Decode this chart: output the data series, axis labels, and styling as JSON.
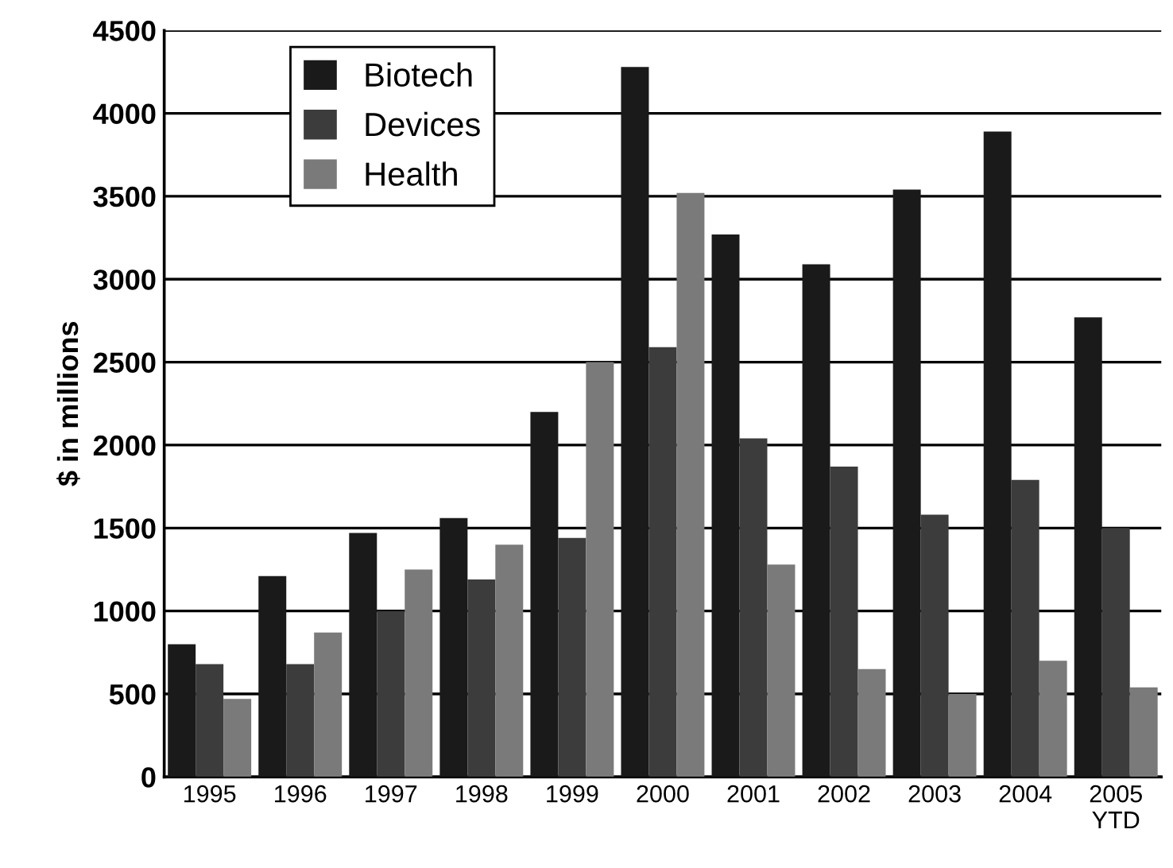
{
  "chart_data": {
    "type": "bar",
    "ylabel": "$ in millions",
    "categories": [
      "1995",
      "1996",
      "1997",
      "1998",
      "1999",
      "2000",
      "2001",
      "2002",
      "2003",
      "2004",
      "2005\nYTD"
    ],
    "series": [
      {
        "name": "Biotech",
        "color": "#1a1a1a",
        "values": [
          800,
          1210,
          1470,
          1560,
          2200,
          4280,
          3270,
          3090,
          3540,
          3890,
          2770
        ]
      },
      {
        "name": "Devices",
        "color": "#3c3c3c",
        "values": [
          680,
          680,
          1000,
          1190,
          1440,
          2590,
          2040,
          1870,
          1580,
          1790,
          1500
        ]
      },
      {
        "name": "Health",
        "color": "#7a7a7a",
        "values": [
          470,
          870,
          1250,
          1400,
          2500,
          3520,
          1280,
          650,
          500,
          700,
          540
        ]
      }
    ],
    "ylim": [
      0,
      4500
    ],
    "yticks": [
      0,
      500,
      1000,
      1500,
      2000,
      2500,
      3000,
      3500,
      4000,
      4500
    ],
    "grid": "y",
    "legend": "top left"
  }
}
